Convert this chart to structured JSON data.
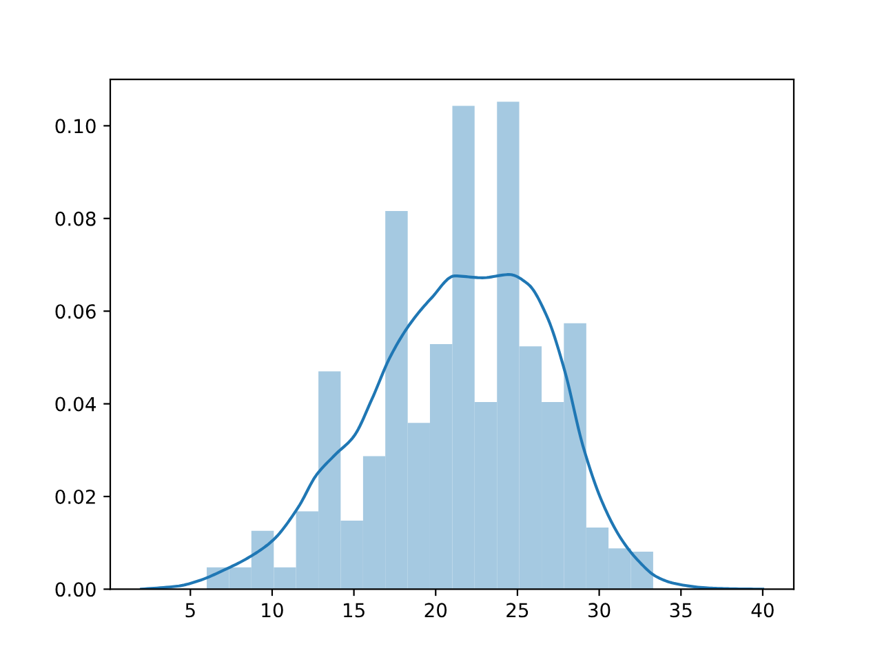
{
  "chart_data": {
    "type": "histogram",
    "xlim": [
      0.1,
      41.9
    ],
    "xticks": [
      5,
      10,
      15,
      20,
      25,
      30,
      35,
      40
    ],
    "ylim": [
      0,
      0.11
    ],
    "yticks": [
      {
        "value": 0,
        "label": "0.00"
      },
      {
        "value": 0.02,
        "label": "0.02"
      },
      {
        "value": 0.04,
        "label": "0.04"
      },
      {
        "value": 0.06,
        "label": "0.06"
      },
      {
        "value": 0.08,
        "label": "0.08"
      },
      {
        "value": 0.1,
        "label": "0.10"
      }
    ],
    "grid": false,
    "legend": false,
    "series": [
      {
        "color": "#a5c9e1",
        "bins": [
          6.0,
          7.37,
          8.73,
          10.1,
          11.46,
          12.83,
          14.19,
          15.56,
          16.92,
          18.29,
          19.65,
          21.02,
          22.38,
          23.75,
          25.11,
          26.48,
          27.84,
          29.21,
          30.57,
          31.94,
          33.3
        ],
        "values": [
          0.0047,
          0.0047,
          0.0126,
          0.0047,
          0.0168,
          0.047,
          0.0148,
          0.0287,
          0.0816,
          0.0359,
          0.0529,
          0.1043,
          0.0404,
          0.1052,
          0.0524,
          0.0404,
          0.0574,
          0.0133,
          0.0088,
          0.0081
        ]
      },
      {
        "type": "line",
        "color": "#1f77b4",
        "x": [
          2.0,
          4.3,
          5.5,
          7.1,
          8.5,
          10.06,
          11.6,
          12.7,
          13.85,
          15.0,
          16.1,
          17.2,
          18.36,
          19.76,
          21.16,
          22.85,
          24.5,
          25.66,
          26.8,
          27.9,
          29.0,
          30.16,
          31.3,
          32.4,
          33.5,
          34.65,
          36.5,
          38.0,
          40.0
        ],
        "values": [
          0.0,
          0.0007,
          0.0018,
          0.0042,
          0.0067,
          0.0106,
          0.0177,
          0.0246,
          0.029,
          0.033,
          0.041,
          0.05,
          0.0569,
          0.0629,
          0.0676,
          0.0672,
          0.0679,
          0.0658,
          0.0589,
          0.047,
          0.031,
          0.019,
          0.0111,
          0.0061,
          0.0027,
          0.0012,
          0.0003,
          0.0001,
          0.0
        ]
      }
    ]
  }
}
